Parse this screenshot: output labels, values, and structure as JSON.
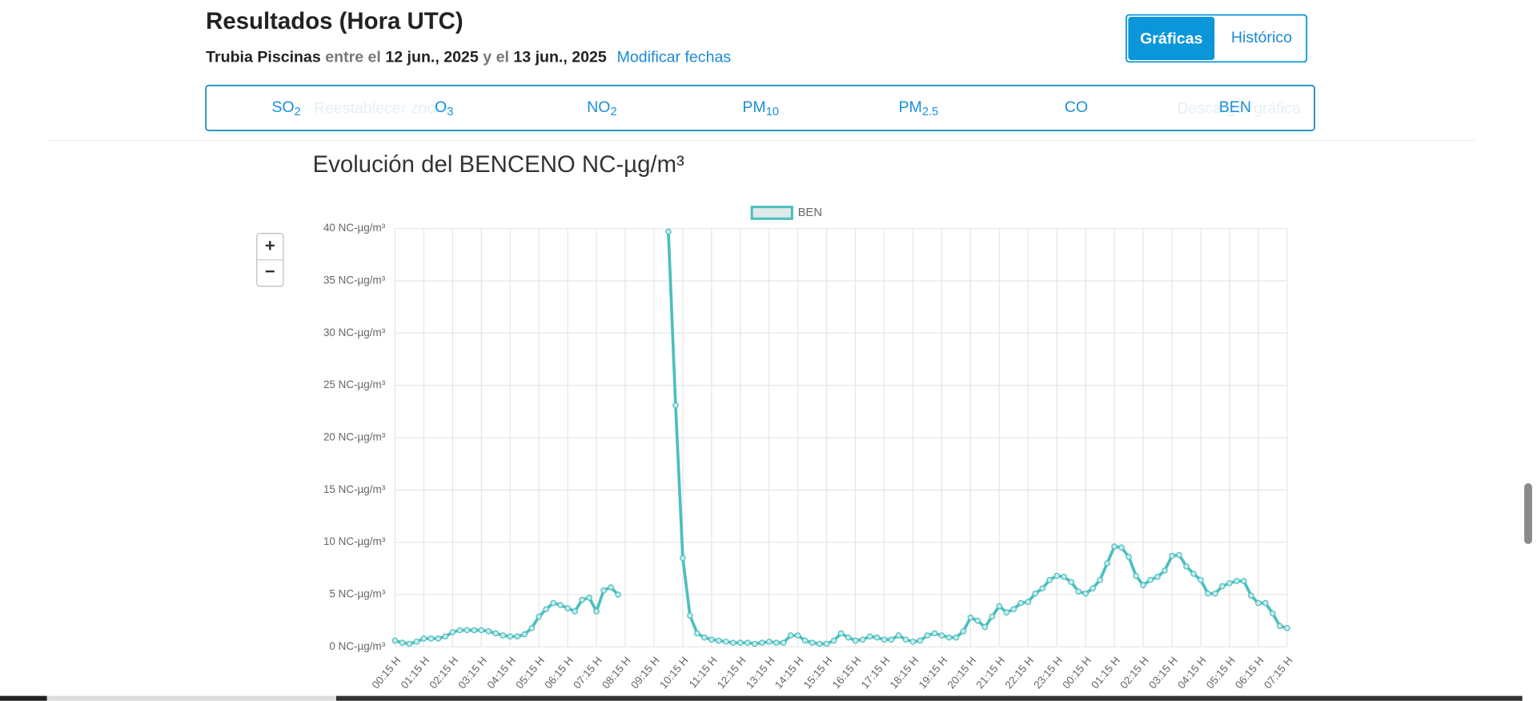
{
  "header": {
    "title": "Resultados (Hora UTC)",
    "station": "Trubia Piscinas",
    "between": "entre el",
    "date_from": "12 jun., 2025",
    "and": "y el",
    "date_to": "13 jun., 2025",
    "change_dates": "Modificar fechas"
  },
  "view_toggle": [
    "Gráficas",
    "Histórico"
  ],
  "tabs": [
    {
      "label": "SO",
      "sub": "2"
    },
    {
      "label": "O",
      "sub": "3"
    },
    {
      "label": "NO",
      "sub": "2"
    },
    {
      "label": "PM",
      "sub": "10"
    },
    {
      "label": "PM",
      "sub": "2.5"
    },
    {
      "label": "CO"
    },
    {
      "label": "BEN"
    }
  ],
  "chart_toolbar": {
    "reset_zoom": "Reestablecer zoom",
    "download": "Descargar gráfica",
    "zoom_in": "+",
    "zoom_out": "−"
  },
  "chart_data": {
    "type": "line",
    "title": "Evolución del BENCENO NC-µg/m³",
    "categories": [
      "00:15 H",
      null,
      null,
      null,
      "01:15 H",
      null,
      null,
      null,
      "02:15 H",
      null,
      null,
      null,
      "03:15 H",
      null,
      null,
      null,
      "04:15 H",
      null,
      null,
      null,
      "05:15 H",
      null,
      null,
      null,
      "06:15 H",
      null,
      null,
      null,
      "07:15 H",
      null,
      null,
      null,
      "08:15 H",
      null,
      null,
      null,
      "09:15 H",
      null,
      null,
      null,
      "10:15 H",
      null,
      null,
      null,
      "11:15 H",
      null,
      null,
      null,
      "12:15 H",
      null,
      null,
      null,
      "13:15 H",
      null,
      null,
      null,
      "14:15 H",
      null,
      null,
      null,
      "15:15 H",
      null,
      null,
      null,
      "16:15 H",
      null,
      null,
      null,
      "17:15 H",
      null,
      null,
      null,
      "18:15 H",
      null,
      null,
      null,
      "19:15 H",
      null,
      null,
      null,
      "20:15 H",
      null,
      null,
      null,
      "21:15 H",
      null,
      null,
      null,
      "22:15 H",
      null,
      null,
      null,
      "23:15 H",
      null,
      null,
      null,
      "00:15 H",
      null,
      null,
      null,
      "01:15 H",
      null,
      null,
      null,
      "02:15 H",
      null,
      null,
      null,
      "03:15 H",
      null,
      null,
      null,
      "04:15 H",
      null,
      null,
      null,
      "05:15 H",
      null,
      null,
      null,
      "06:15 H",
      null,
      null,
      null,
      "07:15 H"
    ],
    "series": [
      {
        "name": "BEN",
        "color": "#4bbfbf",
        "values": [
          0.6,
          0.4,
          0.3,
          0.5,
          0.8,
          0.8,
          0.8,
          1.0,
          1.4,
          1.6,
          1.6,
          1.6,
          1.6,
          1.5,
          1.3,
          1.1,
          1.0,
          1.0,
          1.2,
          1.8,
          2.9,
          3.6,
          4.2,
          4.0,
          3.7,
          3.4,
          4.5,
          4.7,
          3.4,
          5.4,
          5.7,
          5.0,
          null,
          null,
          null,
          null,
          null,
          null,
          39.7,
          23.1,
          8.5,
          3.0,
          1.3,
          0.9,
          0.7,
          0.6,
          0.5,
          0.4,
          0.4,
          0.4,
          0.3,
          0.4,
          0.5,
          0.4,
          0.4,
          1.1,
          1.1,
          0.6,
          0.4,
          0.3,
          0.3,
          0.6,
          1.3,
          0.9,
          0.6,
          0.7,
          1.0,
          0.9,
          0.7,
          0.7,
          1.1,
          0.7,
          0.5,
          0.6,
          1.1,
          1.3,
          1.1,
          0.9,
          0.9,
          1.5,
          2.8,
          2.5,
          1.9,
          2.9,
          3.9,
          3.3,
          3.6,
          4.2,
          4.3,
          5.1,
          5.6,
          6.4,
          6.8,
          6.7,
          6.2,
          5.3,
          5.1,
          5.6,
          6.4,
          8.0,
          9.6,
          9.5,
          8.6,
          6.8,
          5.9,
          6.4,
          6.7,
          7.3,
          8.7,
          8.8,
          7.7,
          7.0,
          6.4,
          5.1,
          5.1,
          5.8,
          6.1,
          6.3,
          6.3,
          4.9,
          4.2,
          4.2,
          3.2,
          2.0,
          1.8
        ]
      }
    ],
    "ylim": [
      0,
      40
    ],
    "yticks": [
      {
        "value": 0,
        "label": "0 NC-µg/m³"
      },
      {
        "value": 5,
        "label": "5 NC-µg/m³"
      },
      {
        "value": 10,
        "label": "10 NC-µg/m³"
      },
      {
        "value": 15,
        "label": "15 NC-µg/m³"
      },
      {
        "value": 20,
        "label": "20 NC-µg/m³"
      },
      {
        "value": 25,
        "label": "25 NC-µg/m³"
      },
      {
        "value": 30,
        "label": "30 NC-µg/m³"
      },
      {
        "value": 35,
        "label": "35 NC-µg/m³"
      },
      {
        "value": 40,
        "label": "40 NC-µg/m³"
      }
    ],
    "grid": true,
    "legend": "top"
  }
}
